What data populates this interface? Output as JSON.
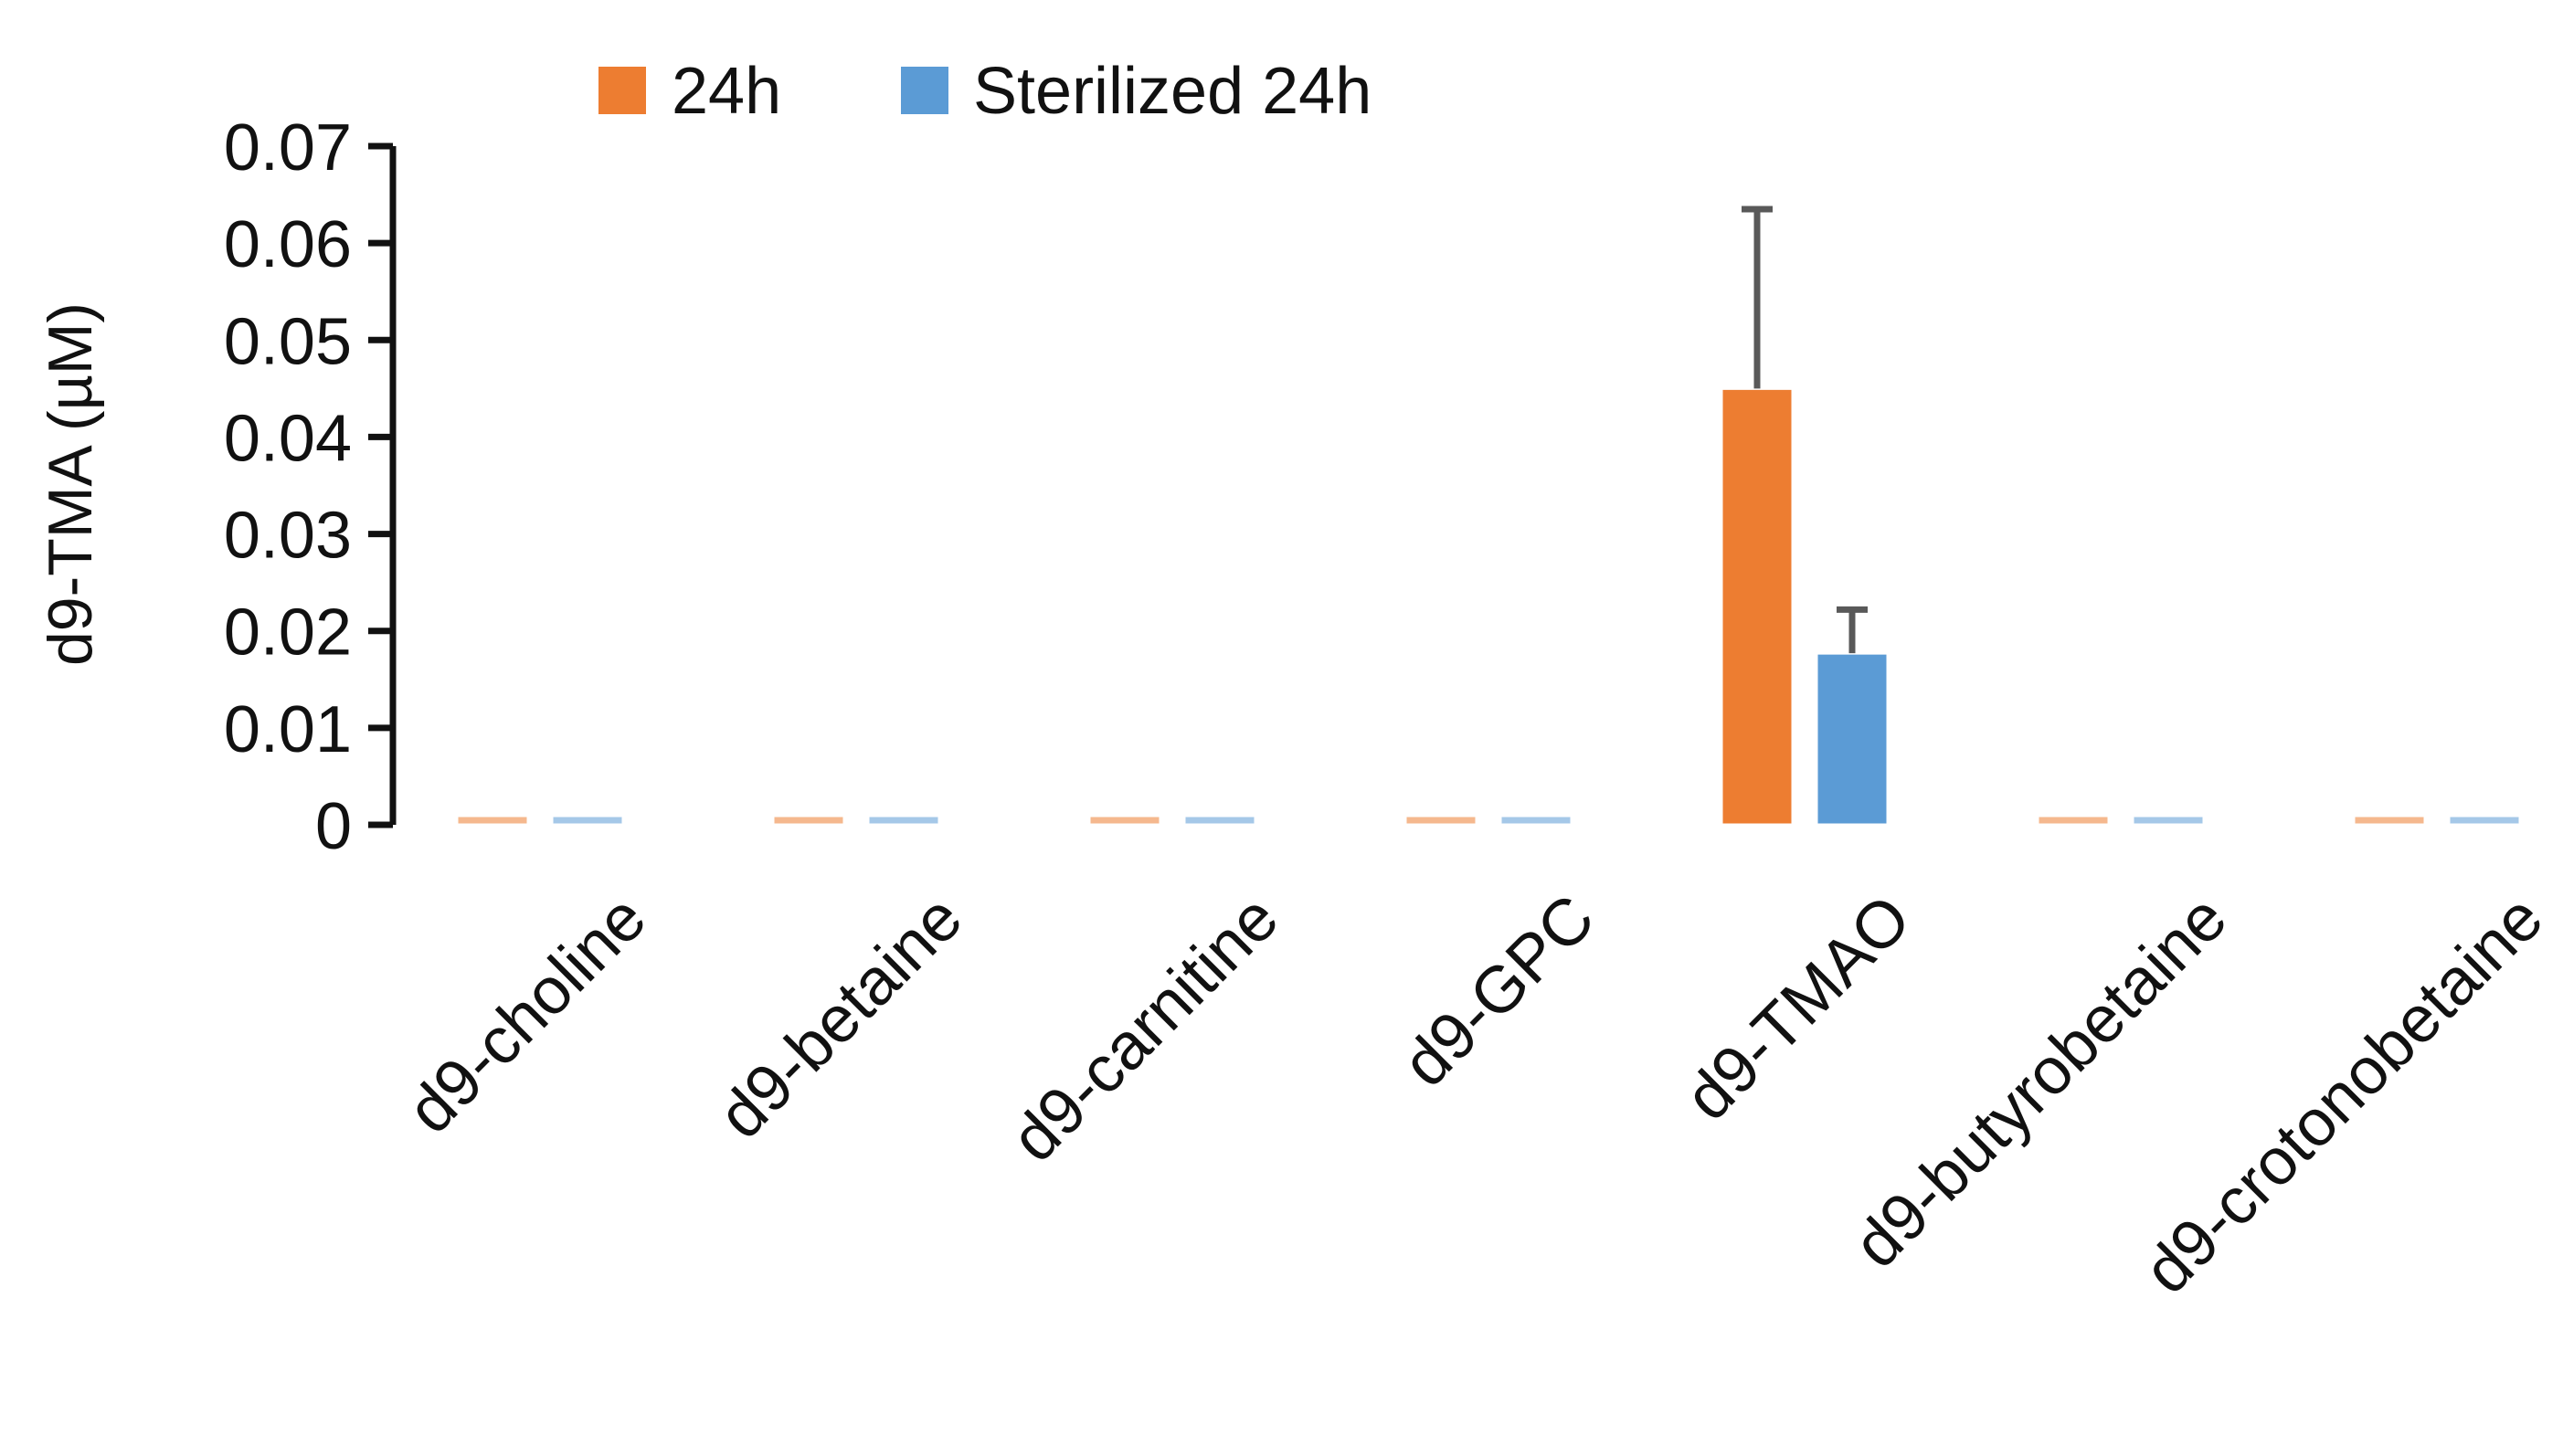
{
  "chart_data": {
    "type": "bar",
    "title": "",
    "xlabel": "",
    "ylabel": "d9-TMA (µM)",
    "ylim": [
      0,
      0.07
    ],
    "yticks": [
      "0",
      "0.01",
      "0.02",
      "0.03",
      "0.04",
      "0.05",
      "0.06",
      "0.07"
    ],
    "categories": [
      "d9-choline",
      "d9-betaine",
      "d9-carnitine",
      "d9-GPC",
      "d9-TMAO",
      "d9-butyrobetaine",
      "d9-crotonobetaine"
    ],
    "series": [
      {
        "name": "24h",
        "color": "#ED7D31",
        "values": [
          0,
          0,
          0,
          0,
          0.045,
          0,
          0
        ],
        "error": [
          0,
          0,
          0,
          0,
          0.0185,
          0,
          0
        ]
      },
      {
        "name": "Sterilized 24h",
        "color": "#5B9BD5",
        "values": [
          0,
          0,
          0,
          0,
          0.0177,
          0,
          0
        ],
        "error": [
          0,
          0,
          0,
          0,
          0.0045,
          0,
          0
        ]
      }
    ],
    "legend_position": "top",
    "grid": false
  }
}
